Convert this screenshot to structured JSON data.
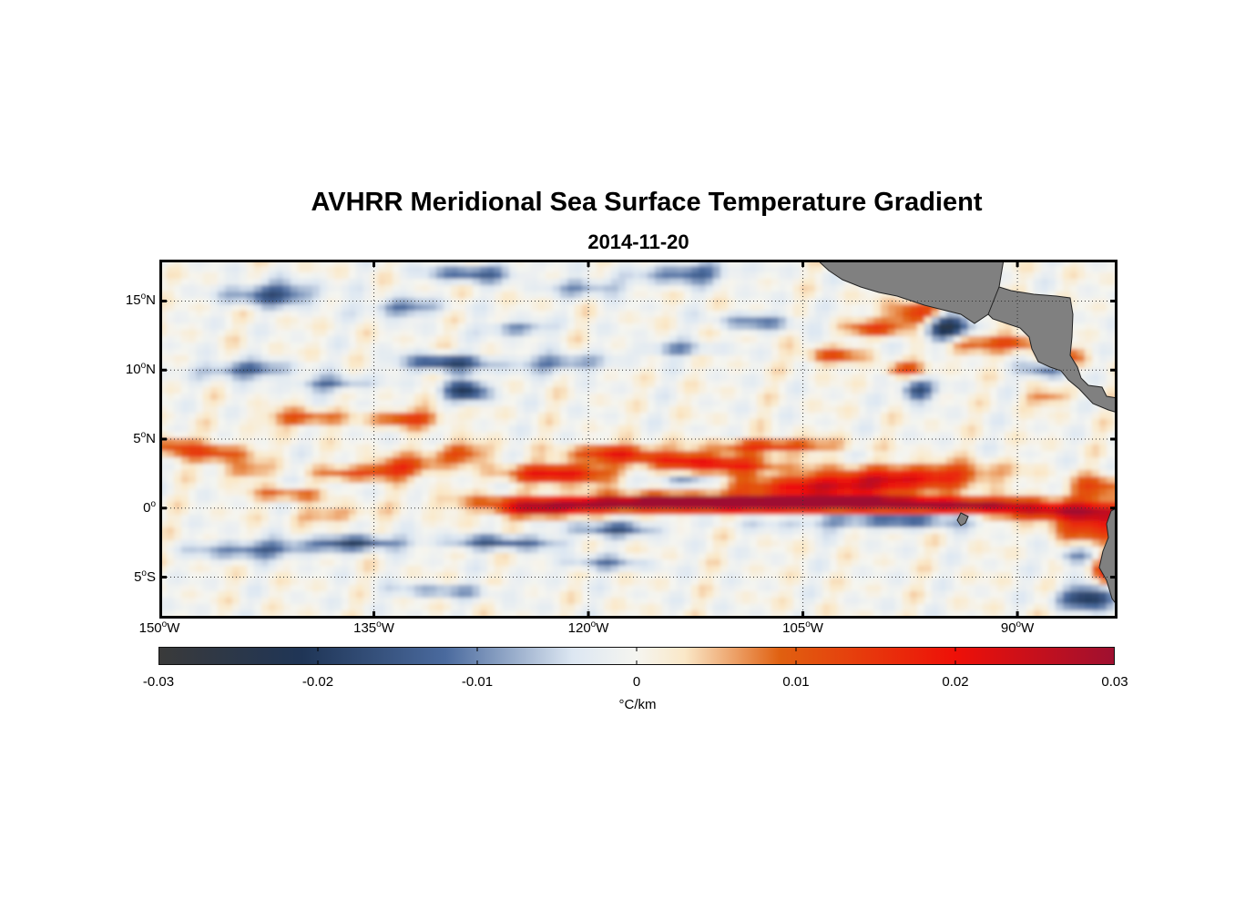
{
  "title": "AVHRR Meridional Sea Surface Temperature Gradient",
  "subtitle": "2014-11-20",
  "map": {
    "lon_range": [
      -150,
      -83
    ],
    "lat_range": [
      -8,
      18
    ],
    "land_color": "#808080",
    "colormap": [
      "#3a3a3a",
      "#1f3556",
      "#4a6a9e",
      "#dde7f2",
      "#f5f5f0",
      "#fae8c8",
      "#e06010",
      "#ee1008",
      "#9e1030"
    ],
    "lat_ticks": [
      {
        "value": 15,
        "num": "15",
        "deg": "o",
        "hemi": "N"
      },
      {
        "value": 10,
        "num": "10",
        "deg": "o",
        "hemi": "N"
      },
      {
        "value": 5,
        "num": "5",
        "deg": "o",
        "hemi": "N"
      },
      {
        "value": 0,
        "num": "0",
        "deg": "o",
        "hemi": ""
      },
      {
        "value": -5,
        "num": "5",
        "deg": "o",
        "hemi": "S"
      }
    ],
    "lon_ticks": [
      {
        "value": -150,
        "num": "150",
        "deg": "o",
        "hemi": "W"
      },
      {
        "value": -135,
        "num": "135",
        "deg": "o",
        "hemi": "W"
      },
      {
        "value": -120,
        "num": "120",
        "deg": "o",
        "hemi": "W"
      },
      {
        "value": -105,
        "num": "105",
        "deg": "o",
        "hemi": "W"
      },
      {
        "value": -90,
        "num": "90",
        "deg": "o",
        "hemi": "W"
      }
    ]
  },
  "colorbar": {
    "min": -0.03,
    "max": 0.03,
    "ticks": [
      "-0.03",
      "-0.02",
      "-0.01",
      "0",
      "0.01",
      "0.02",
      "0.03"
    ],
    "units": "°C/km"
  }
}
